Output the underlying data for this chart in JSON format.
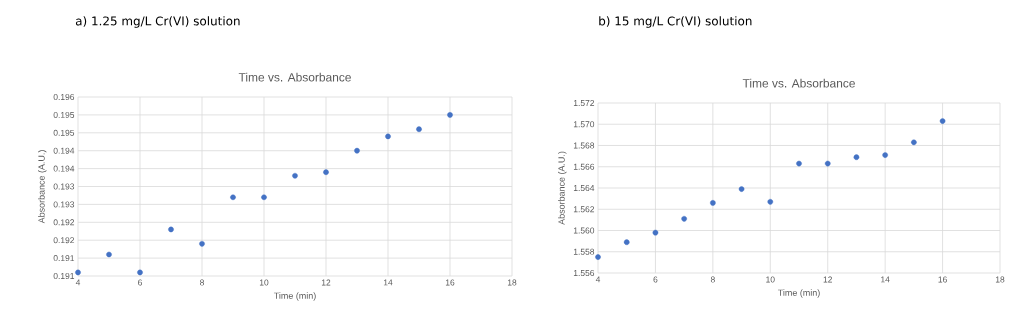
{
  "chart_data": [
    {
      "type": "scatter",
      "title": "Time vs. Absorbance",
      "annotations": [
        "a) 1.25 mg/L Cr(VI) solution"
      ],
      "xlabel": "Time (min)",
      "ylabel": "Absorbance (A.U.)",
      "x": [
        4,
        5,
        6,
        7,
        8,
        9,
        10,
        11,
        12,
        13,
        14,
        15,
        16
      ],
      "series": [
        {
          "color": "#4472c4",
          "values": [
            0.1911,
            0.1916,
            0.1911,
            0.1923,
            0.1919,
            0.1932,
            0.1932,
            0.1938,
            0.1939,
            0.1945,
            0.1949,
            0.1951,
            0.1955
          ]
        }
      ],
      "xlim": [
        4,
        18
      ],
      "xticks": [
        4,
        6,
        8,
        10,
        12,
        14,
        16,
        18
      ],
      "ylim": [
        0.191,
        0.196
      ],
      "yticks": [
        {
          "value": 0.191,
          "label": "0.191"
        },
        {
          "value": 0.1915,
          "label": "0.191"
        },
        {
          "value": 0.192,
          "label": "0.192"
        },
        {
          "value": 0.1925,
          "label": "0.192"
        },
        {
          "value": 0.193,
          "label": "0.193"
        },
        {
          "value": 0.1935,
          "label": "0.193"
        },
        {
          "value": 0.194,
          "label": "0.194"
        },
        {
          "value": 0.1945,
          "label": "0.194"
        },
        {
          "value": 0.195,
          "label": "0.195"
        },
        {
          "value": 0.1955,
          "label": "0.195"
        },
        {
          "value": 0.196,
          "label": "0.196"
        }
      ],
      "grid": true,
      "marker": "circle"
    },
    {
      "type": "scatter",
      "title": "Time vs. Absorbance",
      "annotations": [
        "b) 15 mg/L Cr(VI) solution"
      ],
      "xlabel": "Time (min)",
      "ylabel": "Absorbance (A.U.)",
      "x": [
        4,
        5,
        6,
        7,
        8,
        9,
        10,
        11,
        12,
        13,
        14,
        15,
        16
      ],
      "series": [
        {
          "color": "#4472c4",
          "values": [
            1.5575,
            1.5589,
            1.5598,
            1.5611,
            1.5626,
            1.5639,
            1.5627,
            1.5663,
            1.5663,
            1.5669,
            1.5671,
            1.5683,
            1.5703
          ]
        }
      ],
      "xlim": [
        4,
        18
      ],
      "xticks": [
        4,
        6,
        8,
        10,
        12,
        14,
        16,
        18
      ],
      "ylim": [
        1.556,
        1.572
      ],
      "yticks": [
        {
          "value": 1.556,
          "label": "1.556"
        },
        {
          "value": 1.558,
          "label": "1.558"
        },
        {
          "value": 1.56,
          "label": "1.560"
        },
        {
          "value": 1.562,
          "label": "1.562"
        },
        {
          "value": 1.564,
          "label": "1.564"
        },
        {
          "value": 1.566,
          "label": "1.566"
        },
        {
          "value": 1.568,
          "label": "1.568"
        },
        {
          "value": 1.57,
          "label": "1.570"
        },
        {
          "value": 1.572,
          "label": "1.572"
        }
      ],
      "grid": true,
      "marker": "circle"
    }
  ]
}
